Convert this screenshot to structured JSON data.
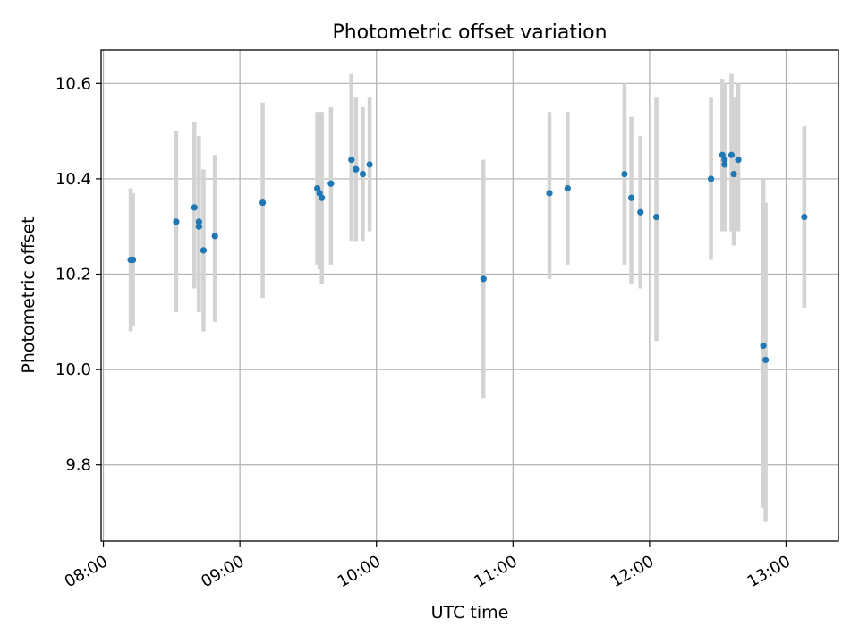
{
  "chart_data": {
    "type": "scatter",
    "title": "Photometric offset variation",
    "xlabel": "UTC time",
    "ylabel": "Photometric offset",
    "x_domain": [
      "07:59",
      "13:23"
    ],
    "ylim": [
      9.64,
      10.67
    ],
    "grid": true,
    "x_ticks": [
      "08:00",
      "09:00",
      "10:00",
      "11:00",
      "12:00",
      "13:00"
    ],
    "y_ticks": [
      9.8,
      10.0,
      10.2,
      10.4,
      10.6
    ],
    "colors": {
      "point": "#1f77b4",
      "errorbar": "#d3d3d3"
    },
    "series": [
      {
        "points": [
          {
            "x": "08:12",
            "y": 10.23,
            "ylo": 10.08,
            "yhi": 10.38
          },
          {
            "x": "08:13",
            "y": 10.23,
            "ylo": 10.09,
            "yhi": 10.37
          },
          {
            "x": "08:32",
            "y": 10.31,
            "ylo": 10.12,
            "yhi": 10.5
          },
          {
            "x": "08:40",
            "y": 10.34,
            "ylo": 10.17,
            "yhi": 10.52
          },
          {
            "x": "08:42",
            "y": 10.3,
            "ylo": 10.12,
            "yhi": 10.49
          },
          {
            "x": "08:42",
            "y": 10.31,
            "ylo": 10.12,
            "yhi": 10.49
          },
          {
            "x": "08:44",
            "y": 10.25,
            "ylo": 10.08,
            "yhi": 10.42
          },
          {
            "x": "08:49",
            "y": 10.28,
            "ylo": 10.1,
            "yhi": 10.45
          },
          {
            "x": "09:10",
            "y": 10.35,
            "ylo": 10.15,
            "yhi": 10.56
          },
          {
            "x": "09:34",
            "y": 10.38,
            "ylo": 10.22,
            "yhi": 10.54
          },
          {
            "x": "09:35",
            "y": 10.37,
            "ylo": 10.21,
            "yhi": 10.54
          },
          {
            "x": "09:36",
            "y": 10.36,
            "ylo": 10.18,
            "yhi": 10.54
          },
          {
            "x": "09:40",
            "y": 10.39,
            "ylo": 10.22,
            "yhi": 10.55
          },
          {
            "x": "09:49",
            "y": 10.44,
            "ylo": 10.27,
            "yhi": 10.62
          },
          {
            "x": "09:51",
            "y": 10.42,
            "ylo": 10.27,
            "yhi": 10.57
          },
          {
            "x": "09:51",
            "y": 10.42,
            "ylo": 10.27,
            "yhi": 10.57
          },
          {
            "x": "09:54",
            "y": 10.41,
            "ylo": 10.27,
            "yhi": 10.55
          },
          {
            "x": "09:57",
            "y": 10.43,
            "ylo": 10.29,
            "yhi": 10.57
          },
          {
            "x": "10:47",
            "y": 10.19,
            "ylo": 9.94,
            "yhi": 10.44
          },
          {
            "x": "11:16",
            "y": 10.37,
            "ylo": 10.19,
            "yhi": 10.54
          },
          {
            "x": "11:24",
            "y": 10.38,
            "ylo": 10.22,
            "yhi": 10.54
          },
          {
            "x": "11:49",
            "y": 10.41,
            "ylo": 10.22,
            "yhi": 10.6
          },
          {
            "x": "11:52",
            "y": 10.36,
            "ylo": 10.18,
            "yhi": 10.53
          },
          {
            "x": "11:56",
            "y": 10.33,
            "ylo": 10.17,
            "yhi": 10.49
          },
          {
            "x": "12:03",
            "y": 10.32,
            "ylo": 10.06,
            "yhi": 10.57
          },
          {
            "x": "12:27",
            "y": 10.4,
            "ylo": 10.23,
            "yhi": 10.57
          },
          {
            "x": "12:32",
            "y": 10.45,
            "ylo": 10.29,
            "yhi": 10.61
          },
          {
            "x": "12:33",
            "y": 10.44,
            "ylo": 10.29,
            "yhi": 10.6
          },
          {
            "x": "12:33",
            "y": 10.43,
            "ylo": 10.29,
            "yhi": 10.57
          },
          {
            "x": "12:36",
            "y": 10.45,
            "ylo": 10.29,
            "yhi": 10.62
          },
          {
            "x": "12:37",
            "y": 10.41,
            "ylo": 10.26,
            "yhi": 10.57
          },
          {
            "x": "12:39",
            "y": 10.44,
            "ylo": 10.29,
            "yhi": 10.6
          },
          {
            "x": "12:50",
            "y": 10.05,
            "ylo": 9.71,
            "yhi": 10.4
          },
          {
            "x": "12:51",
            "y": 10.02,
            "ylo": 9.68,
            "yhi": 10.35
          },
          {
            "x": "13:08",
            "y": 10.32,
            "ylo": 10.13,
            "yhi": 10.51
          }
        ]
      }
    ]
  }
}
